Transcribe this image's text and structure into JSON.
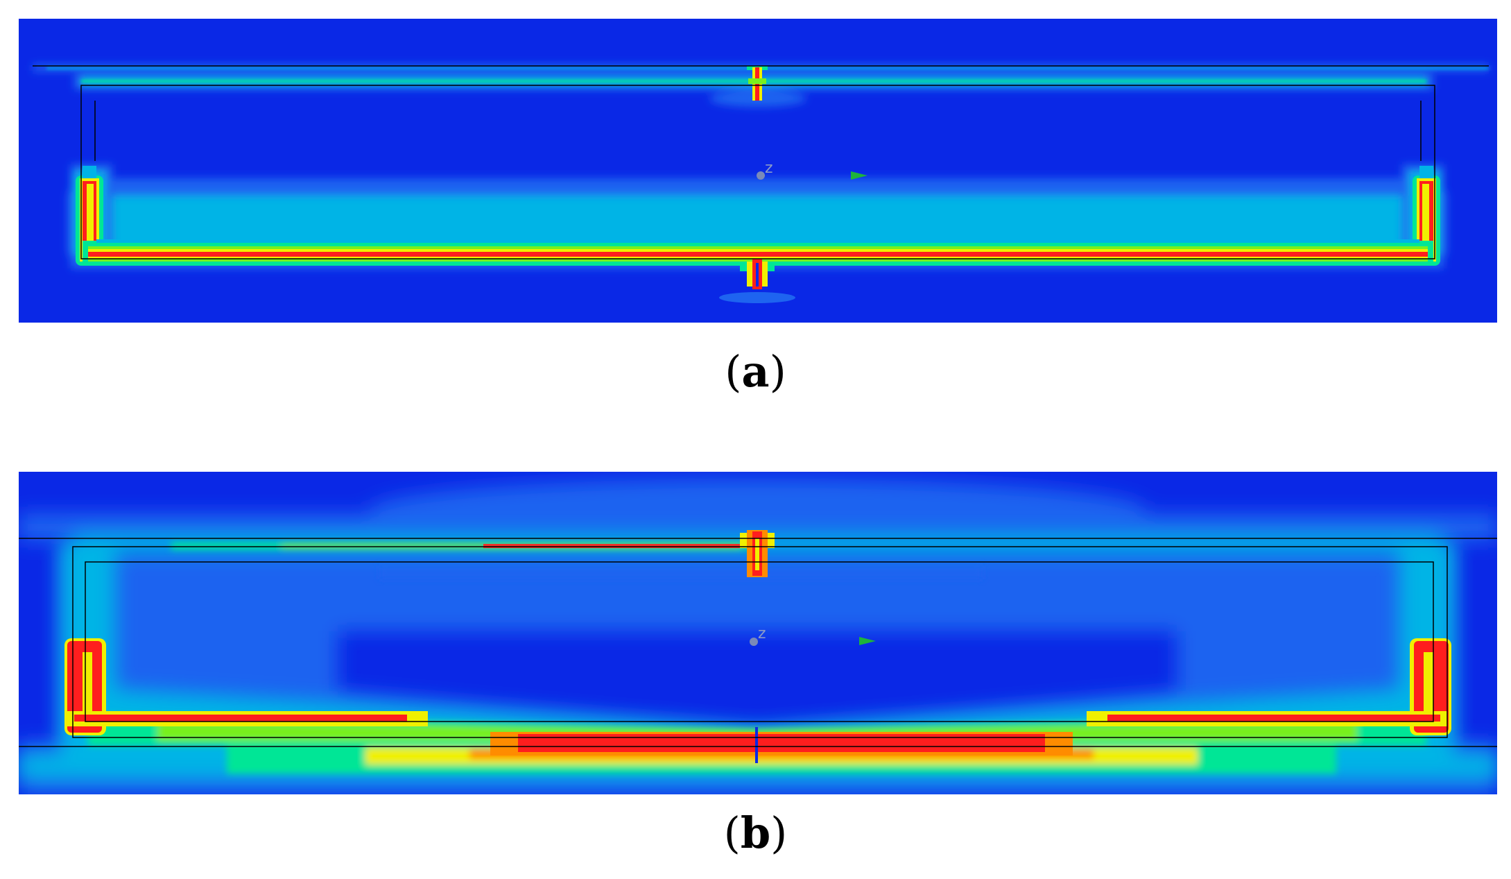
{
  "figure": {
    "panels": [
      {
        "id": "a",
        "caption_open": "(",
        "caption_letter": "a",
        "caption_close": ")",
        "axis_marker_text": "z"
      },
      {
        "id": "b",
        "caption_open": "(",
        "caption_letter": "b",
        "caption_close": ")",
        "axis_marker_text": "z"
      }
    ],
    "colors": {
      "background_field": "#0a28e6",
      "low": "#1e64f0",
      "mid_low": "#00b4e6",
      "mid": "#00e696",
      "mid_high": "#78f01e",
      "high": "#f0f000",
      "very_high": "#ff8c00",
      "max": "#ff1e1e",
      "outline": "#000000"
    }
  }
}
